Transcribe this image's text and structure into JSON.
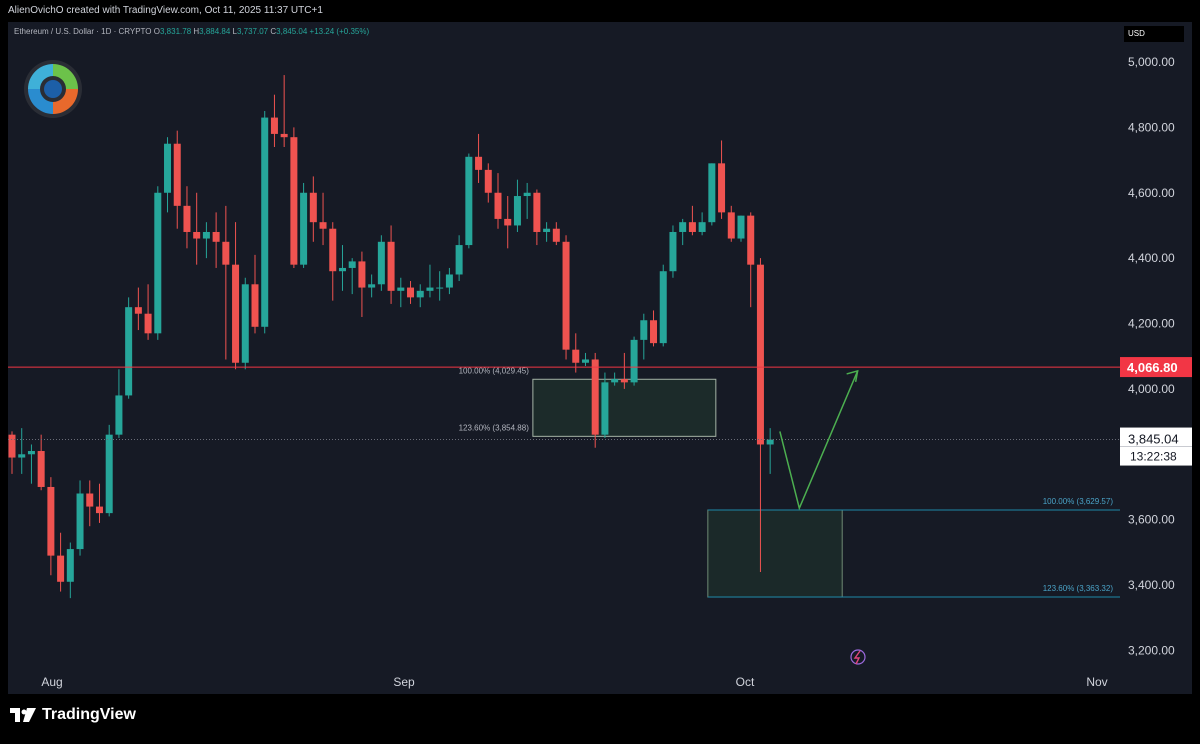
{
  "header": {
    "attribution": "AlienOvichO created with TradingView.com, Oct 11, 2025 11:37 UTC+1"
  },
  "legend": {
    "symbol": "Ethereum / U.S. Dollar · 1D · CRYPTO",
    "open_label": "O",
    "open": "3,831.78",
    "high_label": "H",
    "high": "3,884.84",
    "low_label": "L",
    "low": "3,737.07",
    "close_label": "C",
    "close": "3,845.04",
    "change": "+13.24 (+0.35%)"
  },
  "price_axis": {
    "currency": "USD",
    "ticks": [
      "5,000.00",
      "4,800.00",
      "4,600.00",
      "4,400.00",
      "4,200.00",
      "4,000.00",
      "3,600.00",
      "3,400.00",
      "3,200.00"
    ]
  },
  "time_axis": {
    "ticks": [
      "Aug",
      "Sep",
      "Oct",
      "Nov"
    ]
  },
  "labels": {
    "horizontal_line_price": "4,066.80",
    "last_price": "3,845.04",
    "countdown": "13:22:38",
    "fib_upper_100": "100.00% (4,029.45)",
    "fib_upper_1236": "123.60% (3,854.88)",
    "fib_lower_100": "100.00% (3,629.57)",
    "fib_lower_1236": "123.60% (3,363.32)"
  },
  "footer": {
    "brand": "TradingView"
  },
  "colors": {
    "up": "#26a69a",
    "down": "#ef5350",
    "background": "#161a25",
    "hline": "#f23645",
    "fib_lower": "#1e88a8",
    "arrow": "#4caf50"
  },
  "chart_data": {
    "type": "candlestick",
    "series": "ETH/USD daily",
    "ylim": [
      3150,
      5100
    ],
    "x_ticks": [
      "Aug",
      "Sep",
      "Oct",
      "Nov"
    ],
    "horizontal_line": 4066.8,
    "last_price": 3845.04,
    "zones": [
      {
        "name": "upper",
        "top": 4029.45,
        "bottom": 3854.88,
        "from_candle": 54,
        "to_candle": 72
      },
      {
        "name": "lower",
        "top": 3629.57,
        "bottom": 3363.32,
        "from_candle": 72,
        "to_candle": 85
      }
    ],
    "projection": [
      {
        "candle": 79,
        "price": 3870
      },
      {
        "candle": 81,
        "price": 3635
      },
      {
        "candle": 87,
        "price": 4055
      }
    ],
    "candles": [
      {
        "o": 3860,
        "h": 3870,
        "l": 3740,
        "c": 3790
      },
      {
        "o": 3790,
        "h": 3880,
        "l": 3740,
        "c": 3800
      },
      {
        "o": 3800,
        "h": 3830,
        "l": 3710,
        "c": 3810
      },
      {
        "o": 3810,
        "h": 3860,
        "l": 3690,
        "c": 3700
      },
      {
        "o": 3700,
        "h": 3730,
        "l": 3430,
        "c": 3490
      },
      {
        "o": 3490,
        "h": 3560,
        "l": 3380,
        "c": 3410
      },
      {
        "o": 3410,
        "h": 3530,
        "l": 3360,
        "c": 3510
      },
      {
        "o": 3510,
        "h": 3720,
        "l": 3490,
        "c": 3680
      },
      {
        "o": 3680,
        "h": 3720,
        "l": 3580,
        "c": 3640
      },
      {
        "o": 3640,
        "h": 3710,
        "l": 3590,
        "c": 3620
      },
      {
        "o": 3620,
        "h": 3890,
        "l": 3610,
        "c": 3860
      },
      {
        "o": 3860,
        "h": 4060,
        "l": 3850,
        "c": 3980
      },
      {
        "o": 3980,
        "h": 4280,
        "l": 3970,
        "c": 4250
      },
      {
        "o": 4250,
        "h": 4310,
        "l": 4180,
        "c": 4230
      },
      {
        "o": 4230,
        "h": 4320,
        "l": 4150,
        "c": 4170
      },
      {
        "o": 4170,
        "h": 4620,
        "l": 4150,
        "c": 4600
      },
      {
        "o": 4600,
        "h": 4770,
        "l": 4540,
        "c": 4750
      },
      {
        "o": 4750,
        "h": 4790,
        "l": 4490,
        "c": 4560
      },
      {
        "o": 4560,
        "h": 4620,
        "l": 4430,
        "c": 4480
      },
      {
        "o": 4480,
        "h": 4600,
        "l": 4380,
        "c": 4460
      },
      {
        "o": 4460,
        "h": 4510,
        "l": 4400,
        "c": 4480
      },
      {
        "o": 4480,
        "h": 4540,
        "l": 4370,
        "c": 4450
      },
      {
        "o": 4450,
        "h": 4560,
        "l": 4090,
        "c": 4380
      },
      {
        "o": 4380,
        "h": 4510,
        "l": 4060,
        "c": 4080
      },
      {
        "o": 4080,
        "h": 4340,
        "l": 4060,
        "c": 4320
      },
      {
        "o": 4320,
        "h": 4410,
        "l": 4170,
        "c": 4190
      },
      {
        "o": 4190,
        "h": 4850,
        "l": 4170,
        "c": 4830
      },
      {
        "o": 4830,
        "h": 4900,
        "l": 4740,
        "c": 4780
      },
      {
        "o": 4780,
        "h": 4960,
        "l": 4740,
        "c": 4770
      },
      {
        "o": 4770,
        "h": 4800,
        "l": 4370,
        "c": 4380
      },
      {
        "o": 4380,
        "h": 4630,
        "l": 4370,
        "c": 4600
      },
      {
        "o": 4600,
        "h": 4650,
        "l": 4450,
        "c": 4510
      },
      {
        "o": 4510,
        "h": 4600,
        "l": 4440,
        "c": 4490
      },
      {
        "o": 4490,
        "h": 4510,
        "l": 4270,
        "c": 4360
      },
      {
        "o": 4360,
        "h": 4440,
        "l": 4300,
        "c": 4370
      },
      {
        "o": 4370,
        "h": 4400,
        "l": 4290,
        "c": 4390
      },
      {
        "o": 4390,
        "h": 4420,
        "l": 4220,
        "c": 4310
      },
      {
        "o": 4310,
        "h": 4350,
        "l": 4280,
        "c": 4320
      },
      {
        "o": 4320,
        "h": 4470,
        "l": 4300,
        "c": 4450
      },
      {
        "o": 4450,
        "h": 4500,
        "l": 4260,
        "c": 4300
      },
      {
        "o": 4300,
        "h": 4340,
        "l": 4250,
        "c": 4310
      },
      {
        "o": 4310,
        "h": 4330,
        "l": 4260,
        "c": 4280
      },
      {
        "o": 4280,
        "h": 4320,
        "l": 4250,
        "c": 4300
      },
      {
        "o": 4300,
        "h": 4380,
        "l": 4280,
        "c": 4310
      },
      {
        "o": 4310,
        "h": 4360,
        "l": 4270,
        "c": 4310
      },
      {
        "o": 4310,
        "h": 4370,
        "l": 4290,
        "c": 4350
      },
      {
        "o": 4350,
        "h": 4470,
        "l": 4330,
        "c": 4440
      },
      {
        "o": 4440,
        "h": 4720,
        "l": 4430,
        "c": 4710
      },
      {
        "o": 4710,
        "h": 4780,
        "l": 4630,
        "c": 4670
      },
      {
        "o": 4670,
        "h": 4690,
        "l": 4570,
        "c": 4600
      },
      {
        "o": 4600,
        "h": 4660,
        "l": 4490,
        "c": 4520
      },
      {
        "o": 4520,
        "h": 4590,
        "l": 4430,
        "c": 4500
      },
      {
        "o": 4500,
        "h": 4640,
        "l": 4480,
        "c": 4590
      },
      {
        "o": 4590,
        "h": 4630,
        "l": 4520,
        "c": 4600
      },
      {
        "o": 4600,
        "h": 4610,
        "l": 4440,
        "c": 4480
      },
      {
        "o": 4480,
        "h": 4510,
        "l": 4450,
        "c": 4490
      },
      {
        "o": 4490,
        "h": 4510,
        "l": 4440,
        "c": 4450
      },
      {
        "o": 4450,
        "h": 4470,
        "l": 4090,
        "c": 4120
      },
      {
        "o": 4120,
        "h": 4170,
        "l": 4050,
        "c": 4080
      },
      {
        "o": 4080,
        "h": 4110,
        "l": 4070,
        "c": 4090
      },
      {
        "o": 4090,
        "h": 4110,
        "l": 3820,
        "c": 3860
      },
      {
        "o": 3860,
        "h": 4050,
        "l": 3850,
        "c": 4020
      },
      {
        "o": 4020,
        "h": 4050,
        "l": 4010,
        "c": 4030
      },
      {
        "o": 4030,
        "h": 4110,
        "l": 4000,
        "c": 4020
      },
      {
        "o": 4020,
        "h": 4160,
        "l": 4010,
        "c": 4150
      },
      {
        "o": 4150,
        "h": 4230,
        "l": 4090,
        "c": 4210
      },
      {
        "o": 4210,
        "h": 4240,
        "l": 4130,
        "c": 4140
      },
      {
        "o": 4140,
        "h": 4380,
        "l": 4130,
        "c": 4360
      },
      {
        "o": 4360,
        "h": 4500,
        "l": 4340,
        "c": 4480
      },
      {
        "o": 4480,
        "h": 4520,
        "l": 4440,
        "c": 4510
      },
      {
        "o": 4510,
        "h": 4560,
        "l": 4470,
        "c": 4480
      },
      {
        "o": 4480,
        "h": 4540,
        "l": 4470,
        "c": 4510
      },
      {
        "o": 4510,
        "h": 4690,
        "l": 4500,
        "c": 4690
      },
      {
        "o": 4690,
        "h": 4760,
        "l": 4520,
        "c": 4540
      },
      {
        "o": 4540,
        "h": 4560,
        "l": 4450,
        "c": 4460
      },
      {
        "o": 4460,
        "h": 4530,
        "l": 4450,
        "c": 4530
      },
      {
        "o": 4530,
        "h": 4540,
        "l": 4250,
        "c": 4380
      },
      {
        "o": 4380,
        "h": 4400,
        "l": 3440,
        "c": 3830
      },
      {
        "o": 3830,
        "h": 3880,
        "l": 3740,
        "c": 3845
      }
    ]
  }
}
